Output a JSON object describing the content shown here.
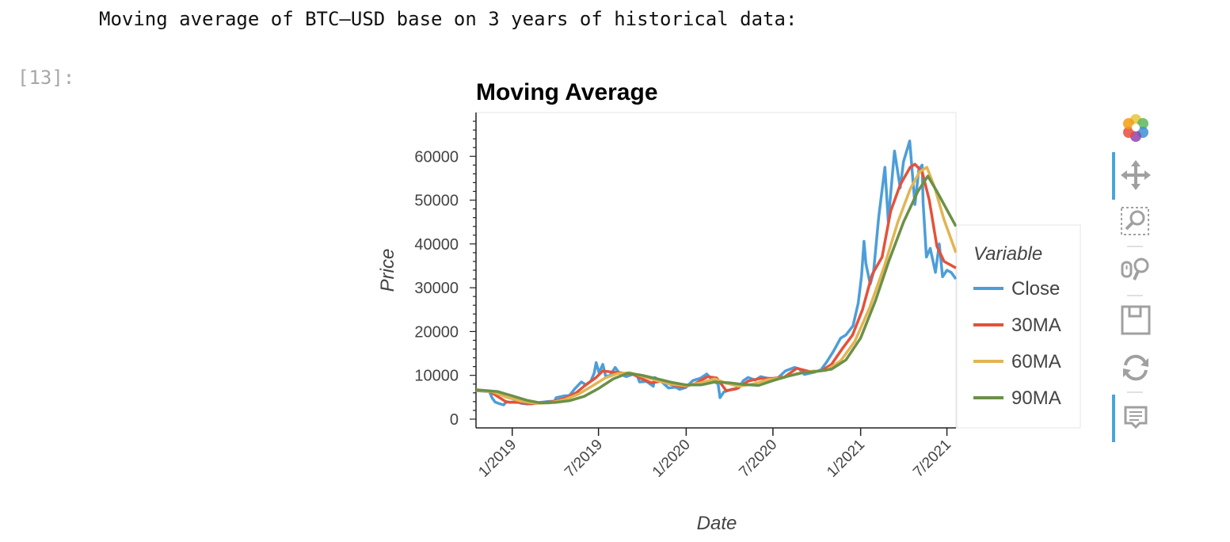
{
  "notebook": {
    "markdown_text": "Moving average of BTC–USD base on 3 years of historical data:",
    "prompt_label": "[13]:"
  },
  "chart_data": {
    "type": "line",
    "title": "Moving Average",
    "xlabel": "Date",
    "ylabel": "Price",
    "legend_title": "Variable",
    "legend_position": "right",
    "grid": false,
    "xlim": [
      "2018-10-17",
      "2021-07-20"
    ],
    "ylim": [
      -2000,
      70000
    ],
    "x_ticks": [
      "2019-01-01",
      "2019-07-01",
      "2020-01-01",
      "2020-07-01",
      "2021-01-01",
      "2021-07-01"
    ],
    "x_tick_labels": [
      "1/2019",
      "7/2019",
      "1/2020",
      "7/2020",
      "1/2021",
      "7/2021"
    ],
    "y_ticks": [
      0,
      10000,
      20000,
      30000,
      40000,
      50000,
      60000
    ],
    "y_tick_labels": [
      "0",
      "10000",
      "20000",
      "30000",
      "40000",
      "50000",
      "60000"
    ],
    "series": [
      {
        "name": "Close",
        "color": "#4c9ed9",
        "points": [
          [
            "2018-10-17",
            6500
          ],
          [
            "2018-11-01",
            6400
          ],
          [
            "2018-11-14",
            6300
          ],
          [
            "2018-11-20",
            4800
          ],
          [
            "2018-11-26",
            3900
          ],
          [
            "2018-12-06",
            3500
          ],
          [
            "2018-12-14",
            3250
          ],
          [
            "2018-12-20",
            4000
          ],
          [
            "2018-12-28",
            3800
          ],
          [
            "2019-01-09",
            4000
          ],
          [
            "2019-01-20",
            3600
          ],
          [
            "2019-02-01",
            3450
          ],
          [
            "2019-02-15",
            3600
          ],
          [
            "2019-02-28",
            3800
          ],
          [
            "2019-03-15",
            4000
          ],
          [
            "2019-03-31",
            4100
          ],
          [
            "2019-04-03",
            4900
          ],
          [
            "2019-04-20",
            5300
          ],
          [
            "2019-05-01",
            5400
          ],
          [
            "2019-05-12",
            6900
          ],
          [
            "2019-05-26",
            8500
          ],
          [
            "2019-06-05",
            7800
          ],
          [
            "2019-06-15",
            8700
          ],
          [
            "2019-06-22",
            10500
          ],
          [
            "2019-06-26",
            12900
          ],
          [
            "2019-07-02",
            10600
          ],
          [
            "2019-07-10",
            12500
          ],
          [
            "2019-07-16",
            9800
          ],
          [
            "2019-07-25",
            9900
          ],
          [
            "2019-08-05",
            11800
          ],
          [
            "2019-08-15",
            10300
          ],
          [
            "2019-08-28",
            9700
          ],
          [
            "2019-09-10",
            10200
          ],
          [
            "2019-09-20",
            10000
          ],
          [
            "2019-09-25",
            8500
          ],
          [
            "2019-10-10",
            8600
          ],
          [
            "2019-10-24",
            7500
          ],
          [
            "2019-10-27",
            9500
          ],
          [
            "2019-11-08",
            8800
          ],
          [
            "2019-11-25",
            7100
          ],
          [
            "2019-12-10",
            7300
          ],
          [
            "2019-12-18",
            6800
          ],
          [
            "2019-12-31",
            7200
          ],
          [
            "2020-01-15",
            8800
          ],
          [
            "2020-02-01",
            9400
          ],
          [
            "2020-02-13",
            10300
          ],
          [
            "2020-02-26",
            8800
          ],
          [
            "2020-03-08",
            8000
          ],
          [
            "2020-03-12",
            4900
          ],
          [
            "2020-03-20",
            6200
          ],
          [
            "2020-04-05",
            6800
          ],
          [
            "2020-04-20",
            7100
          ],
          [
            "2020-04-30",
            8800
          ],
          [
            "2020-05-10",
            9500
          ],
          [
            "2020-05-25",
            8900
          ],
          [
            "2020-06-05",
            9700
          ],
          [
            "2020-06-25",
            9200
          ],
          [
            "2020-07-10",
            9250
          ],
          [
            "2020-07-27",
            11000
          ],
          [
            "2020-08-15",
            11800
          ],
          [
            "2020-08-25",
            11500
          ],
          [
            "2020-09-05",
            10200
          ],
          [
            "2020-09-25",
            10700
          ],
          [
            "2020-10-10",
            11300
          ],
          [
            "2020-10-21",
            12900
          ],
          [
            "2020-11-05",
            15500
          ],
          [
            "2020-11-20",
            18500
          ],
          [
            "2020-12-01",
            19200
          ],
          [
            "2020-12-16",
            21300
          ],
          [
            "2020-12-27",
            26500
          ],
          [
            "2021-01-03",
            32700
          ],
          [
            "2021-01-08",
            40600
          ],
          [
            "2021-01-12",
            35500
          ],
          [
            "2021-01-21",
            30800
          ],
          [
            "2021-01-28",
            33500
          ],
          [
            "2021-02-08",
            46200
          ],
          [
            "2021-02-21",
            57500
          ],
          [
            "2021-02-28",
            45200
          ],
          [
            "2021-03-13",
            61200
          ],
          [
            "2021-03-25",
            52800
          ],
          [
            "2021-04-01",
            58800
          ],
          [
            "2021-04-14",
            63500
          ],
          [
            "2021-04-25",
            49000
          ],
          [
            "2021-05-03",
            57000
          ],
          [
            "2021-05-10",
            58000
          ],
          [
            "2021-05-12",
            49500
          ],
          [
            "2021-05-19",
            37000
          ],
          [
            "2021-05-27",
            39000
          ],
          [
            "2021-06-07",
            33500
          ],
          [
            "2021-06-15",
            40000
          ],
          [
            "2021-06-22",
            32500
          ],
          [
            "2021-07-01",
            34000
          ],
          [
            "2021-07-10",
            33500
          ],
          [
            "2021-07-20",
            32000
          ]
        ]
      },
      {
        "name": "30MA",
        "color": "#e5513a",
        "points": [
          [
            "2018-10-17",
            6500
          ],
          [
            "2018-11-14",
            6400
          ],
          [
            "2018-12-01",
            5200
          ],
          [
            "2018-12-20",
            3900
          ],
          [
            "2019-01-15",
            3800
          ],
          [
            "2019-02-10",
            3500
          ],
          [
            "2019-03-01",
            3700
          ],
          [
            "2019-03-25",
            3950
          ],
          [
            "2019-04-20",
            4700
          ],
          [
            "2019-05-15",
            6000
          ],
          [
            "2019-06-05",
            7900
          ],
          [
            "2019-06-25",
            9400
          ],
          [
            "2019-07-10",
            11000
          ],
          [
            "2019-07-25",
            10800
          ],
          [
            "2019-08-15",
            10600
          ],
          [
            "2019-09-10",
            10300
          ],
          [
            "2019-09-30",
            9200
          ],
          [
            "2019-10-20",
            8300
          ],
          [
            "2019-11-10",
            8700
          ],
          [
            "2019-12-01",
            7900
          ],
          [
            "2019-12-25",
            7300
          ],
          [
            "2020-01-20",
            8100
          ],
          [
            "2020-02-15",
            9700
          ],
          [
            "2020-03-05",
            9400
          ],
          [
            "2020-03-25",
            6500
          ],
          [
            "2020-04-15",
            6900
          ],
          [
            "2020-05-10",
            8700
          ],
          [
            "2020-06-05",
            9300
          ],
          [
            "2020-07-01",
            9300
          ],
          [
            "2020-07-25",
            9600
          ],
          [
            "2020-08-20",
            11600
          ],
          [
            "2020-09-15",
            10900
          ],
          [
            "2020-10-10",
            11000
          ],
          [
            "2020-11-01",
            12500
          ],
          [
            "2020-11-25",
            16300
          ],
          [
            "2020-12-15",
            19200
          ],
          [
            "2021-01-05",
            25000
          ],
          [
            "2021-01-25",
            33000
          ],
          [
            "2021-02-15",
            37000
          ],
          [
            "2021-03-05",
            47500
          ],
          [
            "2021-03-25",
            53500
          ],
          [
            "2021-04-15",
            57500
          ],
          [
            "2021-04-25",
            58200
          ],
          [
            "2021-05-10",
            56500
          ],
          [
            "2021-05-25",
            50000
          ],
          [
            "2021-06-10",
            39500
          ],
          [
            "2021-06-25",
            36000
          ],
          [
            "2021-07-20",
            34500
          ]
        ]
      },
      {
        "name": "60MA",
        "color": "#e2b552",
        "points": [
          [
            "2018-10-17",
            6600
          ],
          [
            "2018-11-20",
            6300
          ],
          [
            "2018-12-20",
            5000
          ],
          [
            "2019-01-20",
            4100
          ],
          [
            "2019-02-20",
            3600
          ],
          [
            "2019-03-20",
            3700
          ],
          [
            "2019-04-20",
            4400
          ],
          [
            "2019-05-20",
            5700
          ],
          [
            "2019-06-20",
            7700
          ],
          [
            "2019-07-15",
            9400
          ],
          [
            "2019-08-10",
            10400
          ],
          [
            "2019-09-05",
            10600
          ],
          [
            "2019-10-01",
            9800
          ],
          [
            "2019-11-01",
            8800
          ],
          [
            "2019-12-01",
            8000
          ],
          [
            "2020-01-01",
            7600
          ],
          [
            "2020-02-01",
            8300
          ],
          [
            "2020-03-01",
            9200
          ],
          [
            "2020-03-25",
            8200
          ],
          [
            "2020-04-20",
            7500
          ],
          [
            "2020-05-20",
            8000
          ],
          [
            "2020-06-20",
            9000
          ],
          [
            "2020-07-20",
            9400
          ],
          [
            "2020-08-20",
            10400
          ],
          [
            "2020-09-20",
            10900
          ],
          [
            "2020-10-20",
            11100
          ],
          [
            "2020-11-20",
            13300
          ],
          [
            "2020-12-20",
            17800
          ],
          [
            "2021-01-20",
            25500
          ],
          [
            "2021-02-20",
            35000
          ],
          [
            "2021-03-20",
            45000
          ],
          [
            "2021-04-15",
            52500
          ],
          [
            "2021-05-05",
            56500
          ],
          [
            "2021-05-20",
            57500
          ],
          [
            "2021-06-05",
            53000
          ],
          [
            "2021-06-25",
            45500
          ],
          [
            "2021-07-20",
            38000
          ]
        ]
      },
      {
        "name": "90MA",
        "color": "#6b9048",
        "points": [
          [
            "2018-10-17",
            6700
          ],
          [
            "2018-12-01",
            6300
          ],
          [
            "2019-01-01",
            5300
          ],
          [
            "2019-02-01",
            4300
          ],
          [
            "2019-03-01",
            3700
          ],
          [
            "2019-04-01",
            3800
          ],
          [
            "2019-05-01",
            4200
          ],
          [
            "2019-06-01",
            5200
          ],
          [
            "2019-07-01",
            7000
          ],
          [
            "2019-08-01",
            9200
          ],
          [
            "2019-09-01",
            10500
          ],
          [
            "2019-10-01",
            10000
          ],
          [
            "2019-11-01",
            9200
          ],
          [
            "2019-12-01",
            8400
          ],
          [
            "2020-01-01",
            7800
          ],
          [
            "2020-02-01",
            7800
          ],
          [
            "2020-03-01",
            8500
          ],
          [
            "2020-04-01",
            8300
          ],
          [
            "2020-05-01",
            7900
          ],
          [
            "2020-06-01",
            7700
          ],
          [
            "2020-07-01",
            8800
          ],
          [
            "2020-08-01",
            9800
          ],
          [
            "2020-09-01",
            10600
          ],
          [
            "2020-10-01",
            10900
          ],
          [
            "2020-11-01",
            11400
          ],
          [
            "2020-12-01",
            13500
          ],
          [
            "2021-01-01",
            18500
          ],
          [
            "2021-02-01",
            27000
          ],
          [
            "2021-03-01",
            36000
          ],
          [
            "2021-04-01",
            45000
          ],
          [
            "2021-05-01",
            52000
          ],
          [
            "2021-05-22",
            55500
          ],
          [
            "2021-06-10",
            52000
          ],
          [
            "2021-06-30",
            48000
          ],
          [
            "2021-07-20",
            44000
          ]
        ]
      }
    ]
  },
  "toolbar": {
    "tools": [
      "bokeh-logo-icon",
      "pan-icon",
      "box-zoom-icon",
      "wheel-zoom-icon",
      "save-icon",
      "reset-icon",
      "hover-icon"
    ]
  }
}
